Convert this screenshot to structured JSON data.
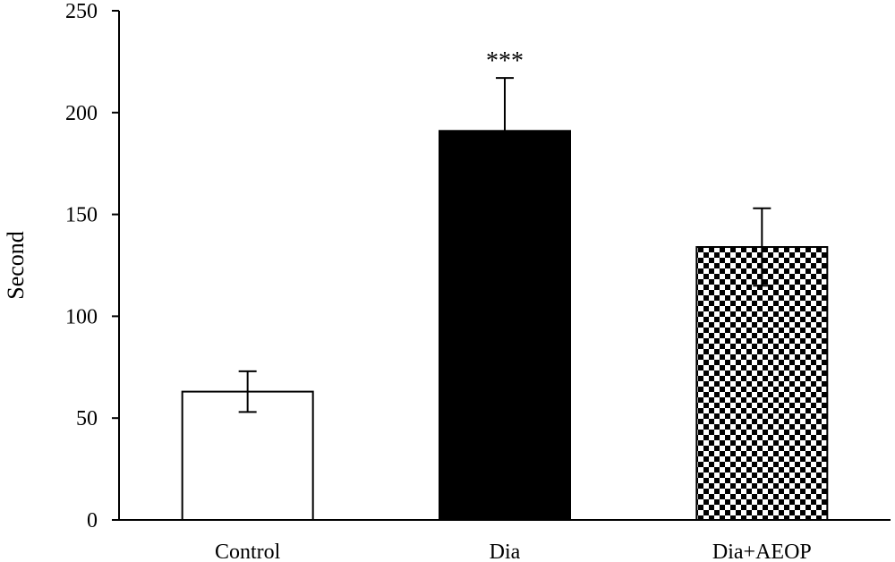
{
  "chart_data": {
    "type": "bar",
    "title": "",
    "xlabel": "",
    "ylabel": "Second",
    "ylim": [
      0,
      250
    ],
    "yticks": [
      0,
      50,
      100,
      150,
      200,
      250
    ],
    "grid": false,
    "legend": "none",
    "categories": [
      "Control",
      "Dia",
      "Dia+AEOP"
    ],
    "values": [
      63,
      191,
      134
    ],
    "errors": [
      10,
      26,
      19
    ],
    "fills": [
      "white",
      "black",
      "checkerboard"
    ],
    "annotations": [
      {
        "category": "Dia",
        "text": "***"
      }
    ]
  }
}
